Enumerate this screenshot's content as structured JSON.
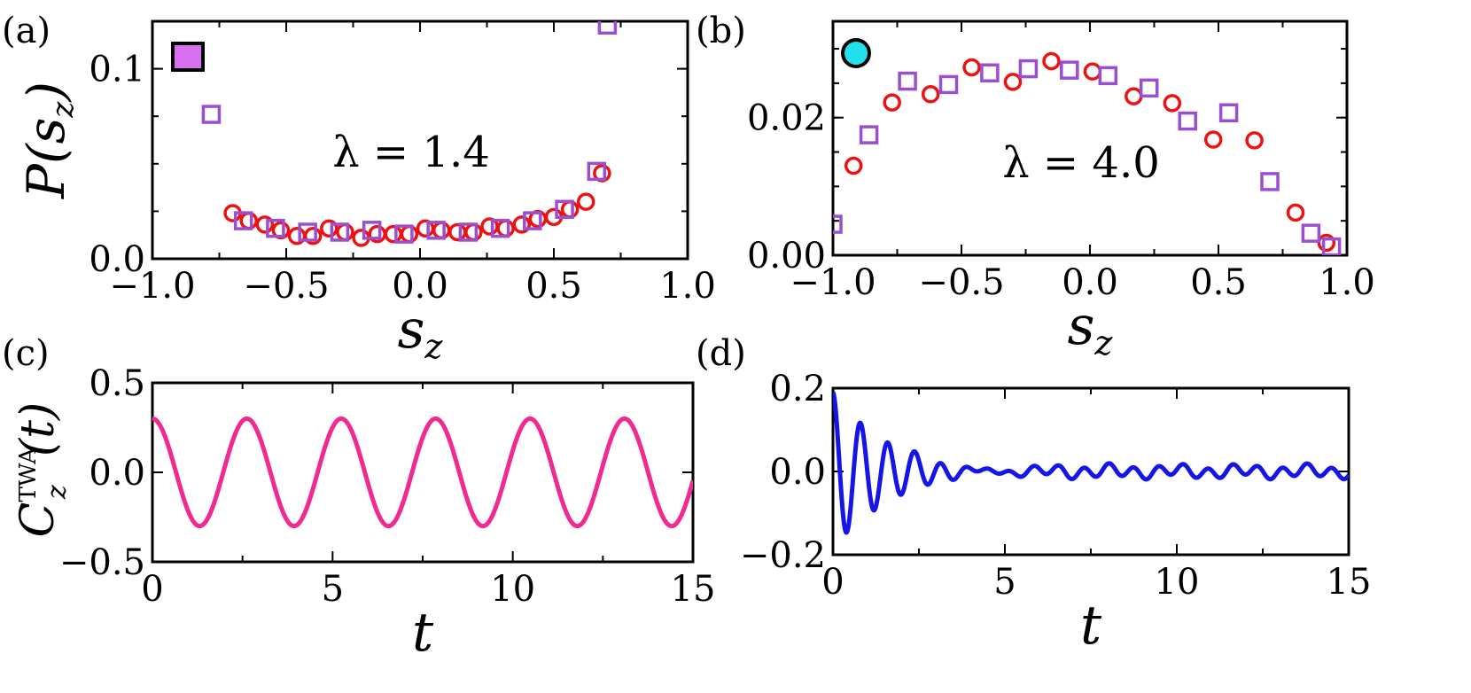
{
  "chart_data": [
    {
      "panel_label": "(a)",
      "type": "scatter",
      "xlabel": "s",
      "xlabel_sub": "z",
      "ylabel": "P(s",
      "ylabel_sub": "z",
      "ylabel_close": ")",
      "xlim": [
        -1.0,
        1.0
      ],
      "ylim": [
        0.0,
        0.125
      ],
      "xticks": [
        -1.0,
        -0.5,
        0.0,
        0.5,
        1.0
      ],
      "xtick_labels": [
        "−1.0",
        "−0.5",
        "0.0",
        "0.5",
        "1.0"
      ],
      "yticks": [
        0.0,
        0.1
      ],
      "ytick_labels": [
        "0.0",
        "0.1"
      ],
      "annotation": "λ = 1.4",
      "marker_symbol": "square",
      "marker_color": "#d86ef0",
      "series": [
        {
          "name": "circles",
          "marker": "circle",
          "color": "#ee1111",
          "x": [
            -0.7,
            -0.64,
            -0.58,
            -0.52,
            -0.46,
            -0.4,
            -0.34,
            -0.28,
            -0.22,
            -0.16,
            -0.1,
            -0.04,
            0.02,
            0.08,
            0.14,
            0.2,
            0.26,
            0.32,
            0.38,
            0.44,
            0.5,
            0.56,
            0.62,
            0.68
          ],
          "y": [
            0.024,
            0.02,
            0.018,
            0.015,
            0.012,
            0.012,
            0.016,
            0.014,
            0.011,
            0.013,
            0.013,
            0.013,
            0.016,
            0.015,
            0.014,
            0.014,
            0.017,
            0.016,
            0.018,
            0.021,
            0.022,
            0.026,
            0.03,
            0.045
          ]
        },
        {
          "name": "squares",
          "marker": "square",
          "color": "#9a4fd1",
          "x": [
            -0.78,
            -0.66,
            -0.54,
            -0.42,
            -0.3,
            -0.18,
            -0.06,
            0.06,
            0.18,
            0.3,
            0.42,
            0.54,
            0.66,
            0.7
          ],
          "y": [
            0.076,
            0.02,
            0.016,
            0.014,
            0.014,
            0.015,
            0.013,
            0.015,
            0.014,
            0.016,
            0.02,
            0.026,
            0.046,
            0.123
          ]
        }
      ]
    },
    {
      "panel_label": "(b)",
      "type": "scatter",
      "xlabel": "s",
      "xlabel_sub": "z",
      "xlim": [
        -1.0,
        1.0
      ],
      "ylim": [
        0.0,
        0.034
      ],
      "xticks": [
        -1.0,
        -0.5,
        0.0,
        0.5,
        1.0
      ],
      "xtick_labels": [
        "−1.0",
        "−0.5",
        "0.0",
        "0.5",
        "1.0"
      ],
      "yticks": [
        0.0,
        0.02
      ],
      "ytick_labels": [
        "0.00",
        "0.02"
      ],
      "annotation": "λ = 4.0",
      "marker_symbol": "circle",
      "marker_color": "#22e0ee",
      "series": [
        {
          "name": "circles",
          "marker": "circle",
          "color": "#ee1111",
          "x": [
            -0.92,
            -0.77,
            -0.62,
            -0.46,
            -0.3,
            -0.15,
            0.01,
            0.17,
            0.32,
            0.48,
            0.64,
            0.8,
            0.92
          ],
          "y": [
            0.013,
            0.0222,
            0.0234,
            0.0273,
            0.0252,
            0.0282,
            0.0267,
            0.0231,
            0.0221,
            0.0168,
            0.0167,
            0.0062,
            0.0018
          ]
        },
        {
          "name": "squares",
          "marker": "square",
          "color": "#9a4fd1",
          "x": [
            -1.0,
            -0.86,
            -0.71,
            -0.55,
            -0.39,
            -0.24,
            -0.08,
            0.07,
            0.23,
            0.38,
            0.54,
            0.7,
            0.86,
            0.94
          ],
          "y": [
            0.0045,
            0.0175,
            0.0253,
            0.0248,
            0.0265,
            0.0271,
            0.0269,
            0.0261,
            0.0243,
            0.0195,
            0.0207,
            0.0107,
            0.0032,
            0.0012
          ]
        }
      ]
    },
    {
      "panel_label": "(c)",
      "type": "line",
      "xlabel": "t",
      "ylabel": "C",
      "ylabel_sub": "z",
      "ylabel_sup": "TWA",
      "ylabel_tail": "(t)",
      "xlim": [
        0,
        15
      ],
      "ylim": [
        -0.5,
        0.5
      ],
      "xticks": [
        0,
        5,
        10,
        15
      ],
      "xtick_labels": [
        "0",
        "5",
        "10",
        "15"
      ],
      "yticks": [
        -0.5,
        0.0,
        0.5
      ],
      "ytick_labels": [
        "−0.5",
        "0.0",
        "0.5"
      ],
      "series": [
        {
          "name": "C_z^TWA(t)",
          "color": "#f02a90",
          "model": "y = 0.3*cos(2*pi*t/2.62)"
        }
      ]
    },
    {
      "panel_label": "(d)",
      "type": "line",
      "xlabel": "t",
      "xlim": [
        0,
        15
      ],
      "ylim": [
        -0.2,
        0.2
      ],
      "xticks": [
        0,
        5,
        10,
        15
      ],
      "xtick_labels": [
        "0",
        "5",
        "10",
        "15"
      ],
      "yticks": [
        -0.2,
        0.0,
        0.2
      ],
      "ytick_labels": [
        "−0.2",
        "0.0",
        "0.2"
      ],
      "series": [
        {
          "name": "C_z^TWA(t)",
          "color": "#1515e8",
          "model": "damped oscillation, amplitude ~0.2 decaying to ~0.015 noise after t≈4"
        }
      ]
    }
  ]
}
